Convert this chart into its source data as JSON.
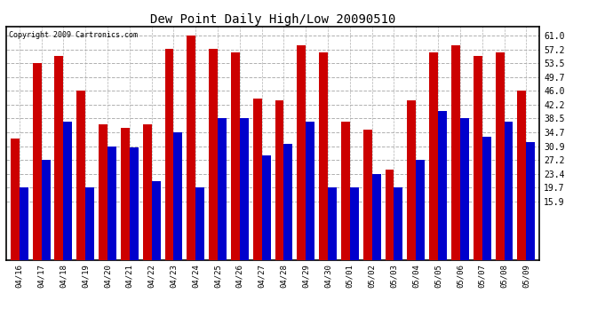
{
  "title": "Dew Point Daily High/Low 20090510",
  "copyright": "Copyright 2009 Cartronics.com",
  "categories": [
    "04/16",
    "04/17",
    "04/18",
    "04/19",
    "04/20",
    "04/21",
    "04/22",
    "04/23",
    "04/24",
    "04/25",
    "04/26",
    "04/27",
    "04/28",
    "04/29",
    "04/30",
    "05/01",
    "05/02",
    "05/03",
    "05/04",
    "05/05",
    "05/06",
    "05/07",
    "05/08",
    "05/09"
  ],
  "highs": [
    33,
    53.5,
    55.5,
    46,
    37,
    36,
    37,
    57.5,
    61,
    57.5,
    56.5,
    44,
    43.5,
    58.5,
    56.5,
    37.5,
    35.5,
    24.5,
    43.5,
    56.5,
    58.5,
    55.5,
    56.5,
    46
  ],
  "lows": [
    19.7,
    27.2,
    37.5,
    19.7,
    30.9,
    30.5,
    21.5,
    34.7,
    19.7,
    38.5,
    38.5,
    28.5,
    31.5,
    37.5,
    19.7,
    19.7,
    23.4,
    19.7,
    27.2,
    40.5,
    38.5,
    33.5,
    37.5,
    32
  ],
  "high_color": "#cc0000",
  "low_color": "#0000cc",
  "bg_color": "#ffffff",
  "plot_bg_color": "#ffffff",
  "grid_color": "#b0b0b0",
  "yticks": [
    15.9,
    19.7,
    23.4,
    27.2,
    30.9,
    34.7,
    38.5,
    42.2,
    46.0,
    49.7,
    53.5,
    57.2,
    61.0
  ],
  "ymin": 0,
  "ymax": 63.5,
  "bar_width": 0.4
}
